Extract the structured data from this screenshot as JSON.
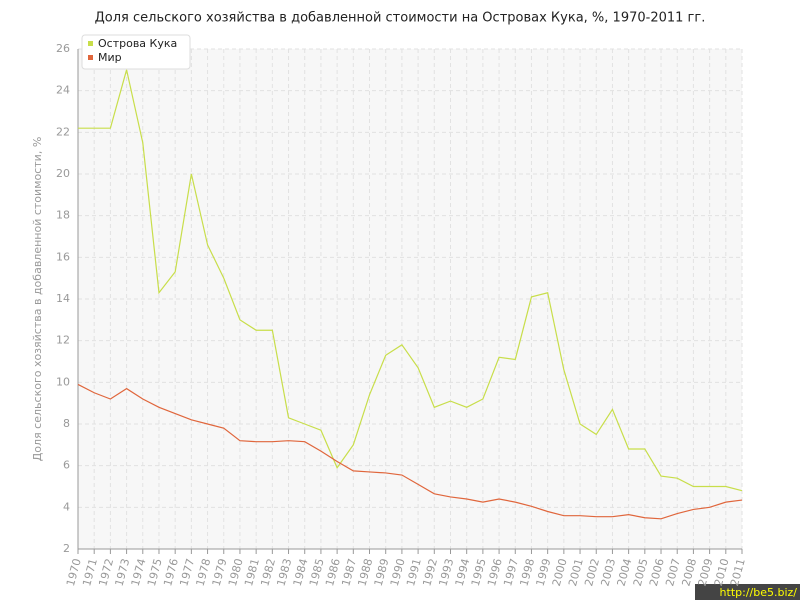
{
  "chart_data": {
    "type": "line",
    "title": "Доля сельского хозяйства в добавленной стоимости на Островах Кука, %, 1970-2011 гг.",
    "y_label": "Доля сельского хозяйства в добавленной стоимости, %",
    "watermark": "http://be5.biz/",
    "categories": [
      "1970",
      "1971",
      "1972",
      "1973",
      "1974",
      "1975",
      "1976",
      "1977",
      "1978",
      "1979",
      "1980",
      "1981",
      "1982",
      "1983",
      "1984",
      "1985",
      "1986",
      "1987",
      "1988",
      "1989",
      "1990",
      "1991",
      "1992",
      "1993",
      "1994",
      "1995",
      "1996",
      "1997",
      "1998",
      "1999",
      "2000",
      "2001",
      "2002",
      "2003",
      "2004",
      "2005",
      "2006",
      "2007",
      "2008",
      "2009",
      "2010",
      "2011"
    ],
    "series": [
      {
        "name": "Острова Кука",
        "color": "#c8de4a",
        "values": [
          22.2,
          22.2,
          22.2,
          25.0,
          21.5,
          14.3,
          15.3,
          20.0,
          16.6,
          15.0,
          13.0,
          12.5,
          12.5,
          8.3,
          8.0,
          7.7,
          5.9,
          7.0,
          9.4,
          11.3,
          11.8,
          10.7,
          8.8,
          9.1,
          8.8,
          9.2,
          11.2,
          11.1,
          14.1,
          14.3,
          10.6,
          8.0,
          7.5,
          8.7,
          6.8,
          6.8,
          5.5,
          5.4,
          5.0,
          5.0,
          5.0,
          4.8
        ]
      },
      {
        "name": "Мир",
        "color": "#e0663c",
        "values": [
          9.9,
          9.5,
          9.2,
          9.7,
          9.2,
          8.8,
          8.5,
          8.2,
          8.0,
          7.8,
          7.2,
          7.15,
          7.15,
          7.2,
          7.15,
          6.7,
          6.2,
          5.75,
          5.7,
          5.65,
          5.55,
          5.1,
          4.65,
          4.5,
          4.4,
          4.25,
          4.4,
          4.25,
          4.05,
          3.8,
          3.6,
          3.6,
          3.55,
          3.55,
          3.65,
          3.5,
          3.45,
          3.7,
          3.9,
          4.0,
          4.25,
          4.35
        ]
      }
    ],
    "ylim": [
      2,
      26
    ],
    "yticks": [
      2,
      4,
      6,
      8,
      10,
      12,
      14,
      16,
      18,
      20,
      22,
      24,
      26
    ],
    "grid": true,
    "legend": "top-left"
  }
}
